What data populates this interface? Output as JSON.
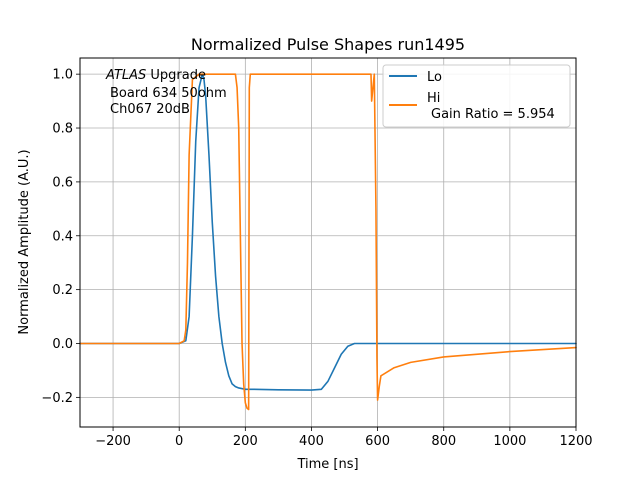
{
  "chart_data": {
    "type": "line",
    "title": "Normalized Pulse Shapes run1495",
    "xlabel": "Time [ns]",
    "ylabel": "Normalized Amplitude (A.U.)",
    "xlim": [
      -300,
      1200
    ],
    "ylim": [
      -0.31,
      1.06
    ],
    "xticks": [
      -200,
      0,
      200,
      400,
      600,
      800,
      1000,
      1200
    ],
    "xtick_labels": [
      "−200",
      "0",
      "200",
      "400",
      "600",
      "800",
      "1000",
      "1200"
    ],
    "yticks": [
      -0.2,
      0.0,
      0.2,
      0.4,
      0.6,
      0.8,
      1.0
    ],
    "ytick_labels": [
      "−0.2",
      "0.0",
      "0.2",
      "0.4",
      "0.6",
      "0.8",
      "1.0"
    ],
    "grid": true,
    "legend_position": "top-right",
    "annotation": {
      "italic": "ATLAS",
      "line1_rest": " Upgrade",
      "line2": "Board 634 50ohm",
      "line3": "Ch067 20dB"
    },
    "series": [
      {
        "name": "Lo",
        "color": "#1f77b4",
        "label_lines": [
          "Lo"
        ],
        "x": [
          -300,
          0,
          20,
          30,
          40,
          50,
          60,
          70,
          75,
          80,
          90,
          100,
          110,
          120,
          130,
          140,
          150,
          160,
          170,
          180,
          200,
          220,
          300,
          400,
          430,
          450,
          470,
          490,
          510,
          530,
          560,
          600,
          800,
          1200
        ],
        "y": [
          0,
          0,
          0.01,
          0.1,
          0.4,
          0.75,
          0.95,
          1.0,
          0.98,
          0.92,
          0.7,
          0.45,
          0.25,
          0.1,
          0.0,
          -0.07,
          -0.12,
          -0.15,
          -0.16,
          -0.165,
          -0.17,
          -0.17,
          -0.172,
          -0.173,
          -0.17,
          -0.14,
          -0.09,
          -0.04,
          -0.01,
          0.0,
          0.0,
          0.0,
          0.0,
          0.0
        ]
      },
      {
        "name": "Hi",
        "color": "#ff7f0e",
        "label_lines": [
          "Hi",
          "Gain Ratio = 5.954"
        ],
        "x": [
          -300,
          0,
          15,
          20,
          25,
          30,
          40,
          60,
          170,
          175,
          180,
          185,
          190,
          195,
          200,
          205,
          210,
          212,
          215,
          218,
          220,
          240,
          350,
          500,
          580,
          582,
          590,
          595,
          598,
          600,
          605,
          610,
          650,
          700,
          800,
          1000,
          1200
        ],
        "y": [
          0,
          0,
          0.01,
          0.05,
          0.3,
          0.7,
          0.98,
          1.0,
          1.0,
          0.95,
          0.8,
          0.4,
          0.0,
          -0.15,
          -0.22,
          -0.24,
          -0.245,
          0.95,
          1.0,
          1.0,
          1.0,
          1.0,
          1.0,
          1.0,
          1.0,
          0.9,
          1.0,
          0.5,
          -0.05,
          -0.21,
          -0.16,
          -0.12,
          -0.09,
          -0.07,
          -0.05,
          -0.03,
          -0.015
        ]
      }
    ]
  }
}
